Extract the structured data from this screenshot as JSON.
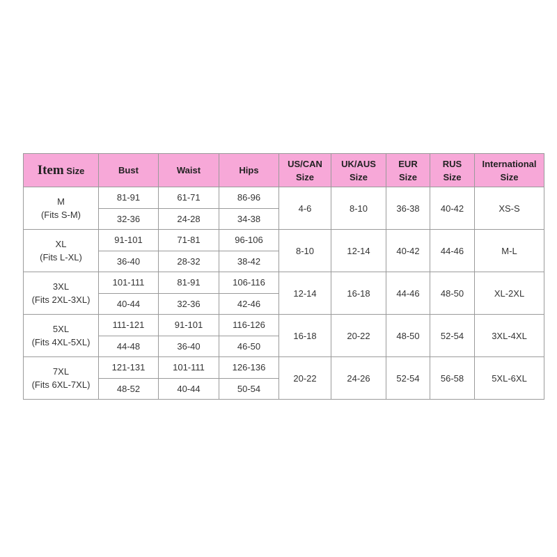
{
  "header": {
    "item": "Item",
    "size": "Size",
    "columns": [
      "Bust",
      "Waist",
      "Hips",
      "US/CAN\nSize",
      "UK/AUS\nSize",
      "EUR\nSize",
      "RUS\nSize",
      "International\nSize"
    ]
  },
  "header_color": "#f7a8d8",
  "rows": [
    {
      "size": "M",
      "fits": "(Fits S-M)",
      "cm": [
        "81-91",
        "61-71",
        "86-96"
      ],
      "inch": [
        "32-36",
        "24-28",
        "34-38"
      ],
      "us": "4-6",
      "uk": "8-10",
      "eur": "36-38",
      "rus": "40-42",
      "intl": "XS-S"
    },
    {
      "size": "XL",
      "fits": "(Fits L-XL)",
      "cm": [
        "91-101",
        "71-81",
        "96-106"
      ],
      "inch": [
        "36-40",
        "28-32",
        "38-42"
      ],
      "us": "8-10",
      "uk": "12-14",
      "eur": "40-42",
      "rus": "44-46",
      "intl": "M-L"
    },
    {
      "size": "3XL",
      "fits": "(Fits 2XL-3XL)",
      "cm": [
        "101-111",
        "81-91",
        "106-116"
      ],
      "inch": [
        "40-44",
        "32-36",
        "42-46"
      ],
      "us": "12-14",
      "uk": "16-18",
      "eur": "44-46",
      "rus": "48-50",
      "intl": "XL-2XL"
    },
    {
      "size": "5XL",
      "fits": "(Fits 4XL-5XL)",
      "cm": [
        "111-121",
        "91-101",
        "116-126"
      ],
      "inch": [
        "44-48",
        "36-40",
        "46-50"
      ],
      "us": "16-18",
      "uk": "20-22",
      "eur": "48-50",
      "rus": "52-54",
      "intl": "3XL-4XL"
    },
    {
      "size": "7XL",
      "fits": "(Fits 6XL-7XL)",
      "cm": [
        "121-131",
        "101-111",
        "126-136"
      ],
      "inch": [
        "48-52",
        "40-44",
        "50-54"
      ],
      "us": "20-22",
      "uk": "24-26",
      "eur": "52-54",
      "rus": "56-58",
      "intl": "5XL-6XL"
    }
  ]
}
